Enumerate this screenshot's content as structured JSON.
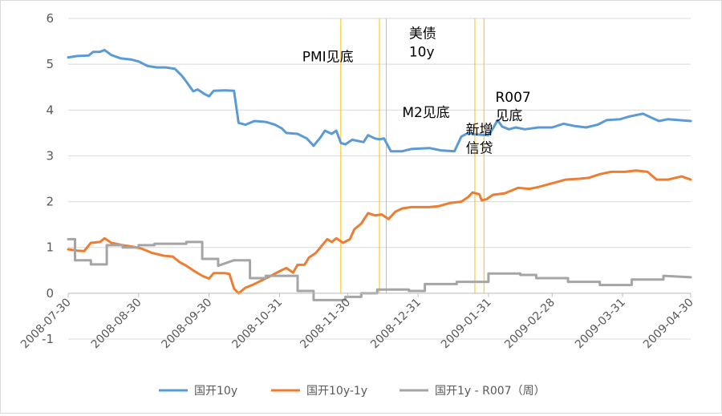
{
  "chart_data": {
    "type": "line",
    "title": "",
    "xlabel": "",
    "ylabel": "",
    "ylim": [
      -1,
      6
    ],
    "y_ticks": [
      "-1",
      "0",
      "1",
      "2",
      "3",
      "4",
      "5",
      "6"
    ],
    "x_range": [
      "2008-07-30",
      "2009-04-30"
    ],
    "x_tick_labels": [
      "2008-07-30",
      "2008-08-30",
      "2008-09-30",
      "2008-10-31",
      "2008-11-30",
      "2008-12-31",
      "2009-01-31",
      "2009-02-28",
      "2009-03-31",
      "2009-04-30"
    ],
    "grid": "horizontal",
    "legend_position": "bottom",
    "series": [
      {
        "name": "国开10y",
        "color": "#5b9bd5",
        "points": [
          [
            "2008-07-30",
            5.15
          ],
          [
            "2008-08-03",
            5.18
          ],
          [
            "2008-08-08",
            5.19
          ],
          [
            "2008-08-10",
            5.27
          ],
          [
            "2008-08-13",
            5.27
          ],
          [
            "2008-08-15",
            5.31
          ],
          [
            "2008-08-18",
            5.2
          ],
          [
            "2008-08-22",
            5.13
          ],
          [
            "2008-08-27",
            5.1
          ],
          [
            "2008-08-30",
            5.06
          ],
          [
            "2008-09-03",
            4.96
          ],
          [
            "2008-09-07",
            4.93
          ],
          [
            "2008-09-11",
            4.93
          ],
          [
            "2008-09-15",
            4.9
          ],
          [
            "2008-09-18",
            4.75
          ],
          [
            "2008-09-20",
            4.62
          ],
          [
            "2008-09-23",
            4.41
          ],
          [
            "2008-09-25",
            4.45
          ],
          [
            "2008-09-28",
            4.35
          ],
          [
            "2008-09-30",
            4.3
          ],
          [
            "2008-10-02",
            4.42
          ],
          [
            "2008-10-07",
            4.43
          ],
          [
            "2008-10-11",
            4.42
          ],
          [
            "2008-10-13",
            3.72
          ],
          [
            "2008-10-16",
            3.68
          ],
          [
            "2008-10-20",
            3.76
          ],
          [
            "2008-10-25",
            3.74
          ],
          [
            "2008-10-29",
            3.68
          ],
          [
            "2008-11-01",
            3.6
          ],
          [
            "2008-11-03",
            3.5
          ],
          [
            "2008-11-08",
            3.48
          ],
          [
            "2008-11-12",
            3.38
          ],
          [
            "2008-11-15",
            3.22
          ],
          [
            "2008-11-18",
            3.4
          ],
          [
            "2008-11-20",
            3.55
          ],
          [
            "2008-11-23",
            3.48
          ],
          [
            "2008-11-25",
            3.55
          ],
          [
            "2008-11-27",
            3.28
          ],
          [
            "2008-11-29",
            3.25
          ],
          [
            "2008-12-02",
            3.35
          ],
          [
            "2008-12-07",
            3.3
          ],
          [
            "2008-12-09",
            3.45
          ],
          [
            "2008-12-12",
            3.38
          ],
          [
            "2008-12-14",
            3.36
          ],
          [
            "2008-12-16",
            3.38
          ],
          [
            "2008-12-19",
            3.1
          ],
          [
            "2008-12-24",
            3.1
          ],
          [
            "2008-12-28",
            3.15
          ],
          [
            "2009-01-05",
            3.17
          ],
          [
            "2009-01-10",
            3.12
          ],
          [
            "2009-01-16",
            3.1
          ],
          [
            "2009-01-19",
            3.42
          ],
          [
            "2009-01-22",
            3.5
          ],
          [
            "2009-01-25",
            3.47
          ],
          [
            "2009-01-31",
            3.45
          ],
          [
            "2009-02-02",
            3.6
          ],
          [
            "2009-02-04",
            3.78
          ],
          [
            "2009-02-06",
            3.64
          ],
          [
            "2009-02-09",
            3.58
          ],
          [
            "2009-02-12",
            3.62
          ],
          [
            "2009-02-16",
            3.58
          ],
          [
            "2009-02-22",
            3.62
          ],
          [
            "2009-02-28",
            3.62
          ],
          [
            "2009-03-05",
            3.7
          ],
          [
            "2009-03-10",
            3.65
          ],
          [
            "2009-03-15",
            3.62
          ],
          [
            "2009-03-20",
            3.68
          ],
          [
            "2009-03-24",
            3.78
          ],
          [
            "2009-03-30",
            3.8
          ],
          [
            "2009-04-03",
            3.86
          ],
          [
            "2009-04-09",
            3.92
          ],
          [
            "2009-04-12",
            3.85
          ],
          [
            "2009-04-16",
            3.76
          ],
          [
            "2009-04-20",
            3.8
          ],
          [
            "2009-04-25",
            3.78
          ],
          [
            "2009-04-30",
            3.76
          ]
        ]
      },
      {
        "name": "国开10y-1y",
        "color": "#ed7d31",
        "points": [
          [
            "2008-07-30",
            0.96
          ],
          [
            "2008-08-03",
            0.93
          ],
          [
            "2008-08-06",
            0.92
          ],
          [
            "2008-08-09",
            1.1
          ],
          [
            "2008-08-13",
            1.12
          ],
          [
            "2008-08-15",
            1.2
          ],
          [
            "2008-08-18",
            1.1
          ],
          [
            "2008-08-23",
            1.05
          ],
          [
            "2008-08-27",
            1.02
          ],
          [
            "2008-08-31",
            0.98
          ],
          [
            "2008-09-05",
            0.88
          ],
          [
            "2008-09-10",
            0.82
          ],
          [
            "2008-09-14",
            0.8
          ],
          [
            "2008-09-17",
            0.68
          ],
          [
            "2008-09-20",
            0.6
          ],
          [
            "2008-09-23",
            0.5
          ],
          [
            "2008-09-27",
            0.38
          ],
          [
            "2008-09-30",
            0.32
          ],
          [
            "2008-10-02",
            0.44
          ],
          [
            "2008-10-07",
            0.44
          ],
          [
            "2008-10-09",
            0.42
          ],
          [
            "2008-10-11",
            0.1
          ],
          [
            "2008-10-13",
            0.0
          ],
          [
            "2008-10-16",
            0.12
          ],
          [
            "2008-10-20",
            0.2
          ],
          [
            "2008-10-24",
            0.3
          ],
          [
            "2008-10-28",
            0.4
          ],
          [
            "2008-10-31",
            0.48
          ],
          [
            "2008-11-03",
            0.55
          ],
          [
            "2008-11-06",
            0.45
          ],
          [
            "2008-11-08",
            0.62
          ],
          [
            "2008-11-11",
            0.62
          ],
          [
            "2008-11-13",
            0.78
          ],
          [
            "2008-11-16",
            0.88
          ],
          [
            "2008-11-18",
            1.0
          ],
          [
            "2008-11-21",
            1.18
          ],
          [
            "2008-11-23",
            1.12
          ],
          [
            "2008-11-25",
            1.2
          ],
          [
            "2008-11-28",
            1.1
          ],
          [
            "2008-12-01",
            1.18
          ],
          [
            "2008-12-03",
            1.4
          ],
          [
            "2008-12-06",
            1.52
          ],
          [
            "2008-12-09",
            1.75
          ],
          [
            "2008-12-12",
            1.7
          ],
          [
            "2008-12-15",
            1.72
          ],
          [
            "2008-12-18",
            1.62
          ],
          [
            "2008-12-21",
            1.78
          ],
          [
            "2008-12-24",
            1.85
          ],
          [
            "2008-12-28",
            1.88
          ],
          [
            "2009-01-05",
            1.88
          ],
          [
            "2009-01-09",
            1.9
          ],
          [
            "2009-01-14",
            1.97
          ],
          [
            "2009-01-19",
            2.0
          ],
          [
            "2009-01-22",
            2.1
          ],
          [
            "2009-01-24",
            2.2
          ],
          [
            "2009-01-27",
            2.16
          ],
          [
            "2009-01-28",
            2.03
          ],
          [
            "2009-01-30",
            2.05
          ],
          [
            "2009-02-02",
            2.15
          ],
          [
            "2009-02-07",
            2.18
          ],
          [
            "2009-02-10",
            2.24
          ],
          [
            "2009-02-13",
            2.3
          ],
          [
            "2009-02-18",
            2.28
          ],
          [
            "2009-02-22",
            2.32
          ],
          [
            "2009-02-28",
            2.4
          ],
          [
            "2009-03-06",
            2.48
          ],
          [
            "2009-03-12",
            2.5
          ],
          [
            "2009-03-16",
            2.52
          ],
          [
            "2009-03-21",
            2.6
          ],
          [
            "2009-03-26",
            2.65
          ],
          [
            "2009-04-01",
            2.65
          ],
          [
            "2009-04-06",
            2.68
          ],
          [
            "2009-04-11",
            2.65
          ],
          [
            "2009-04-15",
            2.48
          ],
          [
            "2009-04-20",
            2.48
          ],
          [
            "2009-04-26",
            2.55
          ],
          [
            "2009-04-30",
            2.48
          ]
        ]
      },
      {
        "name": "国开1y - R007（周）",
        "color": "#a5a5a5",
        "points": [
          [
            "2008-07-30",
            1.18
          ],
          [
            "2008-08-02",
            1.18
          ],
          [
            "2008-08-02",
            0.72
          ],
          [
            "2008-08-09",
            0.72
          ],
          [
            "2008-08-09",
            0.63
          ],
          [
            "2008-08-16",
            0.63
          ],
          [
            "2008-08-16",
            1.05
          ],
          [
            "2008-08-23",
            1.05
          ],
          [
            "2008-08-23",
            1.0
          ],
          [
            "2008-08-30",
            1.0
          ],
          [
            "2008-08-30",
            1.05
          ],
          [
            "2008-09-06",
            1.05
          ],
          [
            "2008-09-06",
            1.08
          ],
          [
            "2008-09-20",
            1.08
          ],
          [
            "2008-09-20",
            1.12
          ],
          [
            "2008-09-27",
            1.12
          ],
          [
            "2008-09-27",
            0.75
          ],
          [
            "2008-10-04",
            0.75
          ],
          [
            "2008-10-04",
            0.6
          ],
          [
            "2008-10-11",
            0.72
          ],
          [
            "2008-10-18",
            0.72
          ],
          [
            "2008-10-18",
            0.33
          ],
          [
            "2008-10-25",
            0.33
          ],
          [
            "2008-10-25",
            0.38
          ],
          [
            "2008-11-08",
            0.38
          ],
          [
            "2008-11-08",
            0.05
          ],
          [
            "2008-11-15",
            0.05
          ],
          [
            "2008-11-15",
            -0.15
          ],
          [
            "2008-11-29",
            -0.15
          ],
          [
            "2008-11-29",
            -0.08
          ],
          [
            "2008-12-06",
            -0.08
          ],
          [
            "2008-12-06",
            0.0
          ],
          [
            "2008-12-13",
            0.0
          ],
          [
            "2008-12-13",
            0.08
          ],
          [
            "2008-12-27",
            0.08
          ],
          [
            "2008-12-27",
            0.05
          ],
          [
            "2009-01-03",
            0.05
          ],
          [
            "2009-01-03",
            0.2
          ],
          [
            "2009-01-17",
            0.2
          ],
          [
            "2009-01-17",
            0.25
          ],
          [
            "2009-01-31",
            0.25
          ],
          [
            "2009-01-31",
            0.43
          ],
          [
            "2009-02-14",
            0.43
          ],
          [
            "2009-02-14",
            0.4
          ],
          [
            "2009-02-21",
            0.4
          ],
          [
            "2009-02-21",
            0.33
          ],
          [
            "2009-03-07",
            0.33
          ],
          [
            "2009-03-07",
            0.25
          ],
          [
            "2009-03-21",
            0.25
          ],
          [
            "2009-03-21",
            0.18
          ],
          [
            "2009-04-04",
            0.18
          ],
          [
            "2009-04-04",
            0.3
          ],
          [
            "2009-04-18",
            0.3
          ],
          [
            "2009-04-18",
            0.38
          ],
          [
            "2009-04-30",
            0.35
          ]
        ]
      }
    ],
    "event_lines": [
      {
        "date": "2008-11-27",
        "color": "#ffc000"
      },
      {
        "date": "2008-12-14",
        "color": "#ffc000"
      },
      {
        "date": "2008-12-17",
        "color": "#ffc000"
      },
      {
        "date": "2009-01-25",
        "color": "#ffc000"
      },
      {
        "date": "2009-01-29",
        "color": "#ffc000"
      }
    ],
    "annotations": [
      {
        "lines": [
          "PMI见底"
        ],
        "x": "2008-11-10",
        "y": 5.06
      },
      {
        "lines": [
          "美债",
          "10y"
        ],
        "x": "2008-12-27",
        "y": 5.57
      },
      {
        "lines": [
          "M2见底"
        ],
        "x": "2008-12-24",
        "y": 3.85
      },
      {
        "lines": [
          "R007",
          "见底"
        ],
        "x": "2009-02-03",
        "y": 4.18
      },
      {
        "lines": [
          "新增",
          "信贷"
        ],
        "x": "2009-01-21",
        "y": 3.47
      }
    ],
    "gridline_color": "#d9d9d9"
  }
}
